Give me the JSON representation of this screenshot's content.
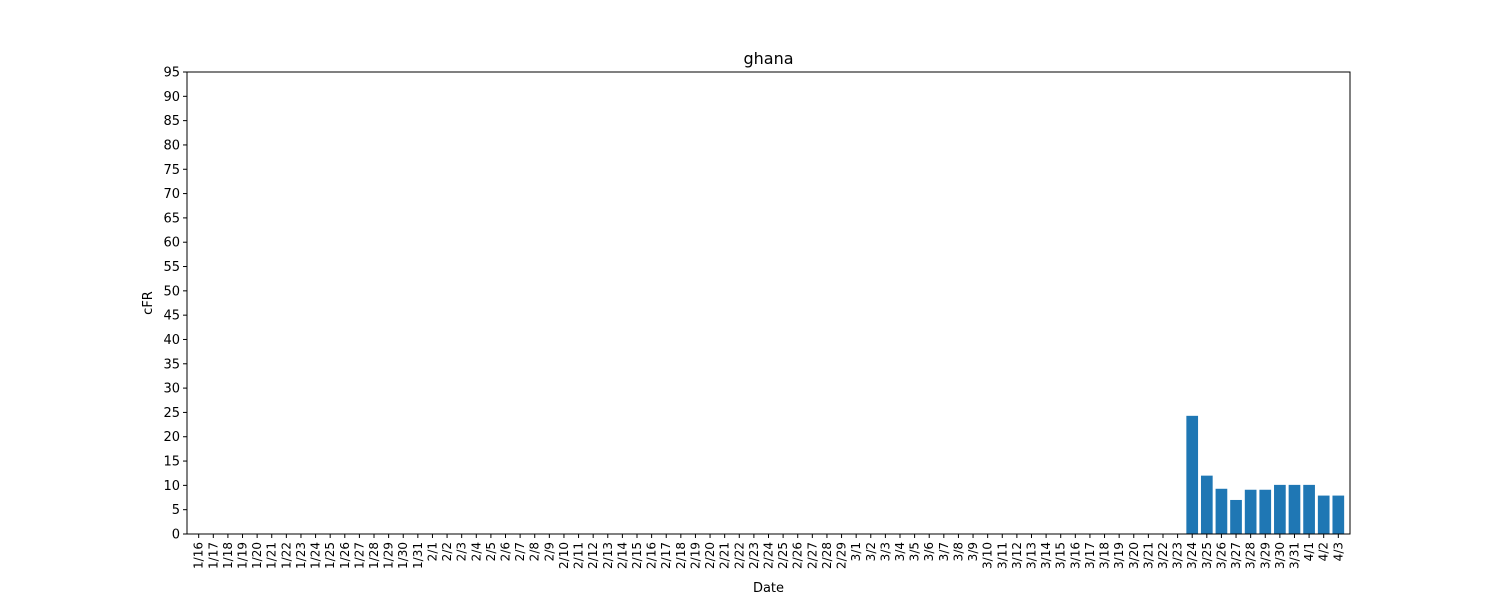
{
  "chart_data": {
    "type": "bar",
    "title": "ghana",
    "xlabel": "Date",
    "ylabel": "cFR",
    "ylim": [
      0,
      95
    ],
    "ytick_step": 5,
    "grid": false,
    "bar_color": "#1f77b4",
    "categories": [
      "1/16",
      "1/17",
      "1/18",
      "1/19",
      "1/20",
      "1/21",
      "1/22",
      "1/23",
      "1/24",
      "1/25",
      "1/26",
      "1/27",
      "1/28",
      "1/29",
      "1/30",
      "1/31",
      "2/1",
      "2/2",
      "2/3",
      "2/4",
      "2/5",
      "2/6",
      "2/7",
      "2/8",
      "2/9",
      "2/10",
      "2/11",
      "2/12",
      "2/13",
      "2/14",
      "2/15",
      "2/16",
      "2/17",
      "2/18",
      "2/19",
      "2/20",
      "2/21",
      "2/22",
      "2/23",
      "2/24",
      "2/25",
      "2/26",
      "2/27",
      "2/28",
      "2/29",
      "3/1",
      "3/2",
      "3/3",
      "3/4",
      "3/5",
      "3/6",
      "3/7",
      "3/8",
      "3/9",
      "3/10",
      "3/11",
      "3/12",
      "3/13",
      "3/14",
      "3/15",
      "3/16",
      "3/17",
      "3/18",
      "3/19",
      "3/20",
      "3/21",
      "3/22",
      "3/23",
      "3/24",
      "3/25",
      "3/26",
      "3/27",
      "3/28",
      "3/29",
      "3/30",
      "3/31",
      "4/1",
      "4/2",
      "4/3"
    ],
    "values": [
      0,
      0,
      0,
      0,
      0,
      0,
      0,
      0,
      0,
      0,
      0,
      0,
      0,
      0,
      0,
      0,
      0,
      0,
      0,
      0,
      0,
      0,
      0,
      0,
      0,
      0,
      0,
      0,
      0,
      0,
      0,
      0,
      0,
      0,
      0,
      0,
      0,
      0,
      0,
      0,
      0,
      0,
      0,
      0,
      0,
      0,
      0,
      0,
      0,
      0,
      0,
      0,
      0,
      0,
      0,
      0,
      0,
      0,
      0,
      0,
      0,
      0,
      0,
      0,
      0,
      0,
      0,
      0,
      24.3,
      12.0,
      9.3,
      7.0,
      9.1,
      9.1,
      10.1,
      10.1,
      10.1,
      7.9,
      7.9
    ]
  }
}
